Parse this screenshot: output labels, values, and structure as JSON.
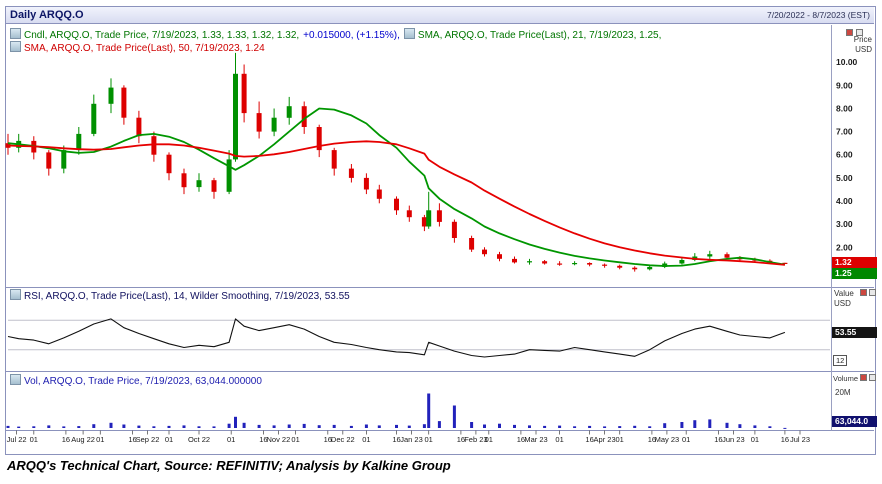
{
  "window": {
    "title": "Daily ARQQ.O",
    "date_range": "7/20/2022 - 8/7/2023 (EST)"
  },
  "legends": {
    "candle": {
      "text_main": "Cndl, ARQQ.O, Trade Price, 7/19/2023, 1.33, 1.33, 1.32, 1.32,",
      "text_change": "+0.015000, (+1.15%),"
    },
    "sma21": {
      "text": "SMA, ARQQ.O, Trade Price(Last),  21, 7/19/2023, 1.25,"
    },
    "sma50": {
      "text": "SMA, ARQQ.O, Trade Price(Last),  50, 7/19/2023, 1.24"
    },
    "rsi": {
      "text": "RSI, ARQQ.O, Trade Price(Last), 14, Wilder Smoothing, 7/19/2023, 53.55"
    },
    "vol": {
      "text": "Vol, ARQQ.O, Trade Price, 7/19/2023, 63,044.000000"
    }
  },
  "axes": {
    "price_title_1": "Price",
    "price_title_2": "USD",
    "price_ticks": [
      "10.00",
      "9.00",
      "8.00",
      "7.00",
      "6.00",
      "5.00",
      "4.00",
      "3.00",
      "2.00"
    ],
    "value_title_1": "Value",
    "value_title_2": "USD",
    "rsi_tick": "12",
    "volume_title": "Volume",
    "volume_tick": "20M",
    "x_ticks": [
      {
        "label": "Jul 22",
        "date": "2022-07-24"
      },
      {
        "label": "01",
        "date": "2022-08-01"
      },
      {
        "label": "16",
        "date": "2022-08-16"
      },
      {
        "label": "Aug 22",
        "date": "2022-08-24"
      },
      {
        "label": "01",
        "date": "2022-09-01"
      },
      {
        "label": "16",
        "date": "2022-09-16"
      },
      {
        "label": "Sep 22",
        "date": "2022-09-23"
      },
      {
        "label": "01",
        "date": "2022-10-03"
      },
      {
        "label": "Oct 22",
        "date": "2022-10-17"
      },
      {
        "label": "01",
        "date": "2022-11-01"
      },
      {
        "label": "16",
        "date": "2022-11-16"
      },
      {
        "label": "Nov 22",
        "date": "2022-11-23"
      },
      {
        "label": "01",
        "date": "2022-12-01"
      },
      {
        "label": "16",
        "date": "2022-12-16"
      },
      {
        "label": "Dec 22",
        "date": "2022-12-23"
      },
      {
        "label": "01",
        "date": "2023-01-03"
      },
      {
        "label": "16",
        "date": "2023-01-17"
      },
      {
        "label": "Jan 23",
        "date": "2023-01-24"
      },
      {
        "label": "01",
        "date": "2023-02-01"
      },
      {
        "label": "16",
        "date": "2023-02-16"
      },
      {
        "label": "Feb 23",
        "date": "2023-02-23"
      },
      {
        "label": "01",
        "date": "2023-03-01"
      },
      {
        "label": "16",
        "date": "2023-03-16"
      },
      {
        "label": "Mar 23",
        "date": "2023-03-23"
      },
      {
        "label": "01",
        "date": "2023-04-03"
      },
      {
        "label": "16",
        "date": "2023-04-17"
      },
      {
        "label": "Apr 23",
        "date": "2023-04-24"
      },
      {
        "label": "01",
        "date": "2023-05-01"
      },
      {
        "label": "16",
        "date": "2023-05-16"
      },
      {
        "label": "May 23",
        "date": "2023-05-23"
      },
      {
        "label": "01",
        "date": "2023-06-01"
      },
      {
        "label": "16",
        "date": "2023-06-16"
      },
      {
        "label": "Jun 23",
        "date": "2023-06-23"
      },
      {
        "label": "01",
        "date": "2023-07-03"
      },
      {
        "label": "16",
        "date": "2023-07-17"
      },
      {
        "label": "Jul 23",
        "date": "2023-07-24"
      }
    ]
  },
  "badges": {
    "last_price": "1.32",
    "sma21": "1.25",
    "rsi": "53.55",
    "volume": "63,044.0"
  },
  "colors": {
    "candle_up": "#009000",
    "candle_down": "#dd0000",
    "sma21": "#009600",
    "sma50": "#e60000",
    "rsi_line": "#111111",
    "volume_bar": "#2222bb",
    "legend_change": "#0000cd",
    "badge_price_bg": "#dd0000",
    "badge_sma_bg": "#008800",
    "badge_rsi_bg": "#141414",
    "badge_vol_bg": "#10106e"
  },
  "caption": "ARQQ's Technical Chart, Source: REFINITIV; Analysis by Kalkine Group",
  "chart_data": [
    {
      "type": "candlestick",
      "panel": "price",
      "title": "Daily ARQQ.O, Trade Price, USD",
      "x_range": [
        "2022-07-20",
        "2023-08-07"
      ],
      "ylim": [
        0.5,
        10.7
      ],
      "y_ticks": [
        2,
        3,
        4,
        5,
        6,
        7,
        8,
        9,
        10
      ],
      "last_values": {
        "open": 1.33,
        "high": 1.33,
        "low": 1.32,
        "close": 1.32,
        "change": 0.015,
        "change_pct": 1.15,
        "sma21": 1.25,
        "sma50": 1.24
      },
      "dates": [
        "2022-07-20",
        "2022-07-25",
        "2022-08-01",
        "2022-08-08",
        "2022-08-15",
        "2022-08-22",
        "2022-08-29",
        "2022-09-06",
        "2022-09-12",
        "2022-09-19",
        "2022-09-26",
        "2022-10-03",
        "2022-10-10",
        "2022-10-17",
        "2022-10-24",
        "2022-10-31",
        "2022-11-03",
        "2022-11-07",
        "2022-11-14",
        "2022-11-21",
        "2022-11-28",
        "2022-12-05",
        "2022-12-12",
        "2022-12-19",
        "2022-12-27",
        "2023-01-03",
        "2023-01-09",
        "2023-01-17",
        "2023-01-23",
        "2023-01-30",
        "2023-02-01",
        "2023-02-06",
        "2023-02-13",
        "2023-02-21",
        "2023-02-27",
        "2023-03-06",
        "2023-03-13",
        "2023-03-20",
        "2023-03-27",
        "2023-04-03",
        "2023-04-10",
        "2023-04-17",
        "2023-04-24",
        "2023-05-01",
        "2023-05-08",
        "2023-05-15",
        "2023-05-22",
        "2023-05-30",
        "2023-06-05",
        "2023-06-12",
        "2023-06-20",
        "2023-06-26",
        "2023-07-03",
        "2023-07-10",
        "2023-07-17"
      ],
      "ohlc": [
        [
          6.5,
          6.9,
          6.0,
          6.3
        ],
        [
          6.3,
          6.9,
          6.1,
          6.6
        ],
        [
          6.6,
          6.8,
          5.8,
          6.1
        ],
        [
          6.1,
          6.2,
          5.1,
          5.4
        ],
        [
          5.4,
          6.4,
          5.2,
          6.2
        ],
        [
          6.2,
          7.2,
          6.0,
          6.9
        ],
        [
          6.9,
          8.6,
          6.8,
          8.2
        ],
        [
          8.2,
          9.3,
          7.8,
          8.9
        ],
        [
          8.9,
          9.0,
          7.3,
          7.6
        ],
        [
          7.6,
          7.9,
          6.5,
          6.8
        ],
        [
          6.8,
          7.0,
          5.7,
          6.0
        ],
        [
          6.0,
          6.1,
          4.9,
          5.2
        ],
        [
          5.2,
          5.4,
          4.3,
          4.6
        ],
        [
          4.6,
          5.2,
          4.4,
          4.9
        ],
        [
          4.9,
          5.0,
          4.1,
          4.4
        ],
        [
          4.4,
          6.2,
          4.3,
          5.8
        ],
        [
          5.8,
          10.4,
          5.7,
          9.5
        ],
        [
          9.5,
          9.9,
          7.4,
          7.8
        ],
        [
          7.8,
          8.3,
          6.7,
          7.0
        ],
        [
          7.0,
          8.0,
          6.8,
          7.6
        ],
        [
          7.6,
          8.5,
          7.3,
          8.1
        ],
        [
          8.1,
          8.3,
          6.9,
          7.2
        ],
        [
          7.2,
          7.3,
          5.9,
          6.2
        ],
        [
          6.2,
          6.3,
          5.1,
          5.4
        ],
        [
          5.4,
          5.6,
          4.8,
          5.0
        ],
        [
          5.0,
          5.2,
          4.3,
          4.5
        ],
        [
          4.5,
          4.7,
          3.9,
          4.1
        ],
        [
          4.1,
          4.2,
          3.4,
          3.6
        ],
        [
          3.6,
          3.8,
          3.1,
          3.3
        ],
        [
          3.3,
          3.4,
          2.7,
          2.9
        ],
        [
          2.9,
          4.4,
          2.8,
          3.6
        ],
        [
          3.6,
          3.9,
          2.9,
          3.1
        ],
        [
          3.1,
          3.2,
          2.2,
          2.4
        ],
        [
          2.4,
          2.5,
          1.8,
          1.9
        ],
        [
          1.9,
          2.0,
          1.6,
          1.7
        ],
        [
          1.7,
          1.8,
          1.4,
          1.5
        ],
        [
          1.5,
          1.6,
          1.3,
          1.35
        ],
        [
          1.35,
          1.5,
          1.25,
          1.4
        ],
        [
          1.4,
          1.45,
          1.25,
          1.3
        ],
        [
          1.3,
          1.4,
          1.2,
          1.28
        ],
        [
          1.28,
          1.4,
          1.22,
          1.32
        ],
        [
          1.32,
          1.35,
          1.18,
          1.25
        ],
        [
          1.25,
          1.3,
          1.12,
          1.2
        ],
        [
          1.2,
          1.25,
          1.05,
          1.12
        ],
        [
          1.12,
          1.18,
          0.95,
          1.05
        ],
        [
          1.05,
          1.2,
          1.0,
          1.15
        ],
        [
          1.15,
          1.38,
          1.1,
          1.3
        ],
        [
          1.3,
          1.55,
          1.25,
          1.45
        ],
        [
          1.45,
          1.75,
          1.4,
          1.6
        ],
        [
          1.6,
          1.85,
          1.5,
          1.7
        ],
        [
          1.7,
          1.78,
          1.48,
          1.55
        ],
        [
          1.55,
          1.62,
          1.4,
          1.48
        ],
        [
          1.48,
          1.55,
          1.35,
          1.42
        ],
        [
          1.42,
          1.48,
          1.3,
          1.36
        ],
        [
          1.33,
          1.33,
          1.32,
          1.32
        ]
      ],
      "series": [
        {
          "name": "SMA 21",
          "values": [
            6.5,
            6.45,
            6.38,
            6.28,
            6.15,
            6.08,
            6.12,
            6.35,
            6.6,
            6.85,
            6.9,
            6.78,
            6.55,
            6.22,
            5.85,
            5.5,
            5.35,
            5.55,
            5.95,
            6.45,
            7.0,
            7.55,
            8.0,
            7.95,
            7.7,
            7.35,
            6.85,
            6.3,
            5.7,
            5.1,
            4.55,
            4.1,
            3.65,
            3.25,
            2.9,
            2.6,
            2.35,
            2.12,
            1.93,
            1.77,
            1.63,
            1.52,
            1.43,
            1.35,
            1.28,
            1.22,
            1.19,
            1.21,
            1.28,
            1.4,
            1.5,
            1.55,
            1.48,
            1.36,
            1.25
          ]
        },
        {
          "name": "SMA 50",
          "values": [
            6.4,
            6.38,
            6.36,
            6.33,
            6.28,
            6.24,
            6.22,
            6.25,
            6.32,
            6.4,
            6.45,
            6.45,
            6.4,
            6.3,
            6.18,
            6.05,
            5.95,
            5.92,
            5.95,
            6.02,
            6.12,
            6.25,
            6.38,
            6.48,
            6.55,
            6.58,
            6.55,
            6.45,
            6.28,
            6.05,
            5.78,
            5.48,
            5.15,
            4.8,
            4.45,
            4.1,
            3.76,
            3.44,
            3.14,
            2.86,
            2.6,
            2.37,
            2.17,
            2.0,
            1.86,
            1.74,
            1.64,
            1.56,
            1.5,
            1.46,
            1.43,
            1.4,
            1.36,
            1.3,
            1.24
          ]
        }
      ]
    },
    {
      "type": "line",
      "panel": "rsi",
      "name": "RSI 14, Wilder Smoothing",
      "ylim": [
        5,
        95
      ],
      "gridlines": [
        30,
        70
      ],
      "last": 53.55,
      "values": [
        48,
        45,
        43,
        38,
        46,
        55,
        65,
        72,
        60,
        52,
        45,
        38,
        33,
        36,
        34,
        40,
        72,
        62,
        56,
        60,
        64,
        58,
        48,
        40,
        37,
        33,
        30,
        27,
        26,
        23,
        40,
        35,
        28,
        22,
        20,
        22,
        24,
        30,
        29,
        28,
        33,
        30,
        27,
        24,
        21,
        30,
        42,
        52,
        58,
        62,
        55,
        50,
        48,
        46,
        53.55
      ]
    },
    {
      "type": "bar",
      "panel": "volume",
      "name": "Volume",
      "ylim_millions": [
        0,
        22
      ],
      "top_tick": "20M",
      "last_shares": 63044,
      "values_millions": [
        1.2,
        0.8,
        1.0,
        1.5,
        0.9,
        1.1,
        2.2,
        3.0,
        2.0,
        1.4,
        1.0,
        1.2,
        1.5,
        1.0,
        0.9,
        2.5,
        6.5,
        3.0,
        1.8,
        1.5,
        2.0,
        2.4,
        1.6,
        1.8,
        1.2,
        2.0,
        1.5,
        1.8,
        1.4,
        2.2,
        20.0,
        4.0,
        13.0,
        3.5,
        2.0,
        2.5,
        1.8,
        1.5,
        1.2,
        1.4,
        1.0,
        1.2,
        0.9,
        1.1,
        1.3,
        1.0,
        2.8,
        3.5,
        4.5,
        5.0,
        3.0,
        2.2,
        1.5,
        1.0,
        0.06
      ]
    }
  ]
}
